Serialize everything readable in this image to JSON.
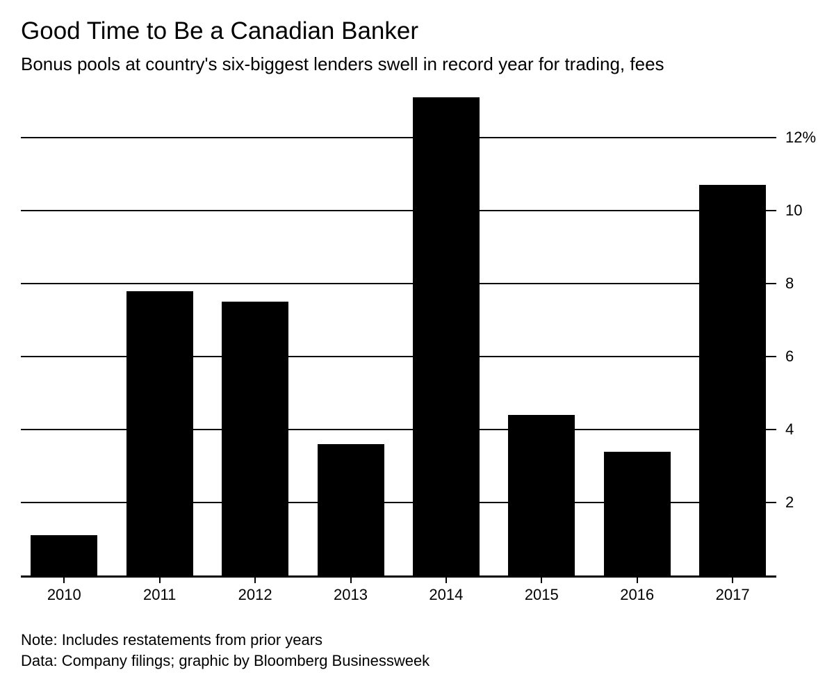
{
  "page": {
    "background": "#ffffff",
    "text_color": "#000000"
  },
  "header": {
    "title": "Good Time to Be a Canadian Banker",
    "subtitle": "Bonus pools at country's six-biggest lenders swell in record year for trading, fees"
  },
  "chart_data": {
    "type": "bar",
    "title": "Good Time to Be a Canadian Banker",
    "subtitle": "Bonus pools at country's six-biggest lenders swell in record year for trading, fees",
    "categories": [
      "2010",
      "2011",
      "2012",
      "2013",
      "2014",
      "2015",
      "2016",
      "2017"
    ],
    "values": [
      1.1,
      7.8,
      7.5,
      3.6,
      13.1,
      4.4,
      3.4,
      10.7
    ],
    "value_unit": "%",
    "xlabel": "",
    "ylabel": "",
    "ylim": [
      0,
      13.1
    ],
    "y_ticks": [
      2,
      4,
      6,
      8,
      10,
      12
    ],
    "y_tick_labels": [
      "2",
      "4",
      "6",
      "8",
      "10",
      "12%"
    ],
    "y_axis_position": "right",
    "grid": true,
    "legend": "none",
    "bar_color": "#000000"
  },
  "footer": {
    "note": "Note: Includes restatements from prior years",
    "source": "Data: Company filings; graphic by Bloomberg Businessweek"
  }
}
